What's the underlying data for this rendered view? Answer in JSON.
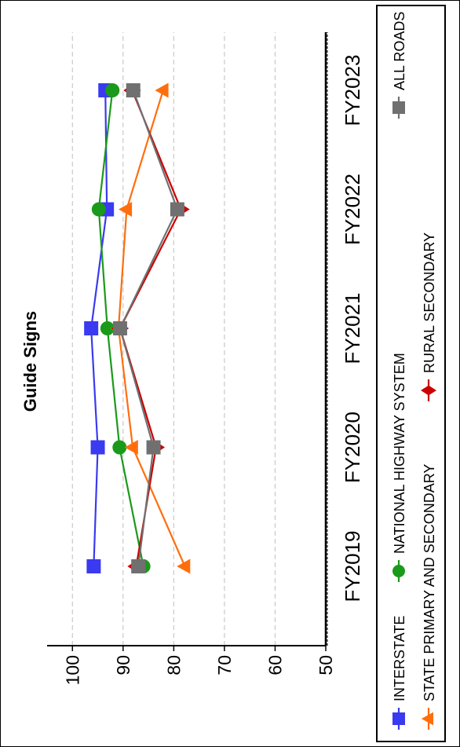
{
  "chart_data": {
    "type": "line",
    "title": "Guide Signs",
    "categories": [
      "FY2019",
      "FY2020",
      "FY2021",
      "FY2022",
      "FY2023"
    ],
    "ylim": [
      50,
      105
    ],
    "yticks": [
      50,
      60,
      70,
      80,
      90,
      100
    ],
    "grid": true,
    "legend_position": "right",
    "series": [
      {
        "name": "INTERSTATE",
        "color": "#3a3af0",
        "marker": "square",
        "values": [
          95.8,
          95.0,
          96.3,
          93.2,
          93.5
        ]
      },
      {
        "name": "NATIONAL HIGHWAY SYSTEM",
        "color": "#1a9a1a",
        "marker": "circle",
        "values": [
          86.0,
          90.7,
          93.1,
          94.8,
          92.1
        ]
      },
      {
        "name": "STATE PRIMARY AND SECONDARY",
        "color": "#ff6e0d",
        "marker": "triangle",
        "values": [
          77.8,
          88.1,
          90.9,
          89.3,
          82.1
        ]
      },
      {
        "name": "RURAL SECONDARY",
        "color": "#cc0000",
        "marker": "diamond",
        "values": [
          87.4,
          83.5,
          90.6,
          78.6,
          88.2
        ]
      },
      {
        "name": "ALL ROADS",
        "color": "#707070",
        "marker": "square",
        "values": [
          87.0,
          84.0,
          90.6,
          79.3,
          88.0
        ]
      }
    ]
  }
}
